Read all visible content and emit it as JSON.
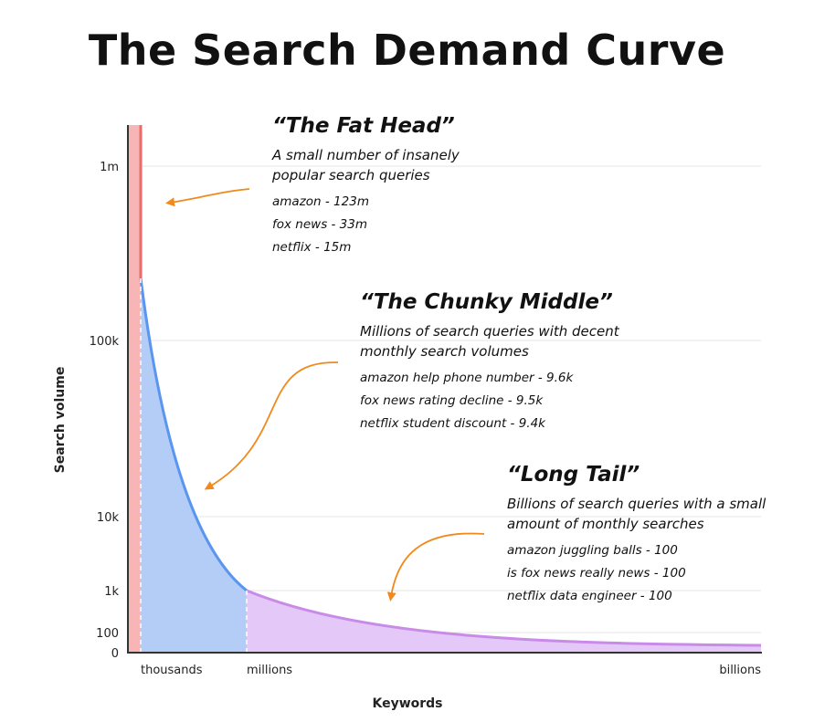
{
  "chart_data": {
    "type": "area",
    "title": "The Search Demand Curve",
    "x_label": "Keywords",
    "y_label": "Search volume",
    "xticks": [
      "thousands",
      "millions",
      "billions"
    ],
    "yticks": [
      0,
      100,
      {
        "value": 1000,
        "label": "1k"
      },
      {
        "value": 10000,
        "label": "10k"
      },
      {
        "value": 100000,
        "label": "100k"
      },
      {
        "value": 1000000,
        "label": "1m"
      }
    ],
    "grid": true,
    "annotations": [
      {
        "title": "“The Fat Head”",
        "subtitle": "A small number of insanely popular search queries",
        "examples": [
          "amazon - 123m",
          "fox news - 33m",
          "netflix - 15m"
        ]
      },
      {
        "title": "“The Chunky Middle”",
        "subtitle": "Millions of search queries with decent monthly search volumes",
        "examples": [
          "amazon help phone number - 9.6k",
          "fox news rating decline - 9.5k",
          "netflix student discount - 9.4k"
        ]
      },
      {
        "title": "“Long Tail”",
        "subtitle": "Billions of search queries with a small amount of monthly searches",
        "examples": [
          "amazon juggling balls - 100",
          "is fox news really news - 100",
          "netflix data engineer - 100"
        ]
      }
    ]
  }
}
